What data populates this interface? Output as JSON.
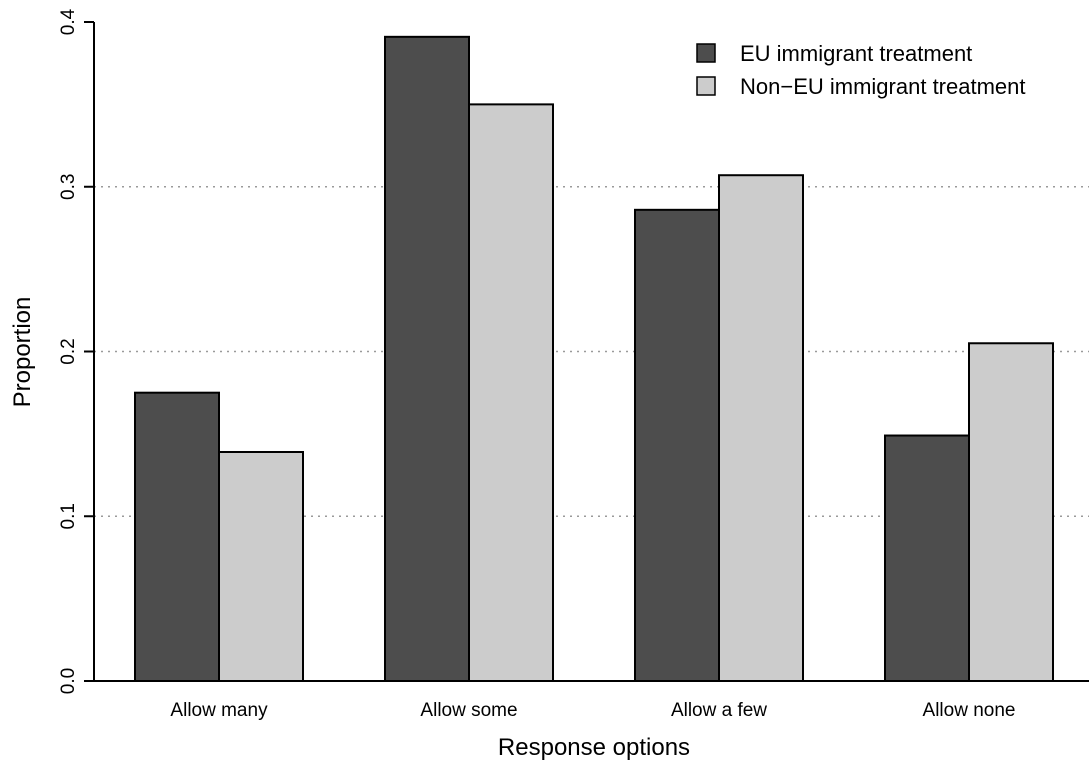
{
  "chart_data": {
    "type": "bar",
    "title": "",
    "xlabel": "Response options",
    "ylabel": "Proportion",
    "categories": [
      "Allow many",
      "Allow some",
      "Allow a few",
      "Allow none"
    ],
    "series": [
      {
        "name": "EU immigrant treatment",
        "values": [
          0.175,
          0.391,
          0.286,
          0.149
        ],
        "color": "#4d4d4d"
      },
      {
        "name": "Non−EU immigrant treatment",
        "values": [
          0.139,
          0.35,
          0.307,
          0.205
        ],
        "color": "#cccccc"
      }
    ],
    "ylim": [
      0,
      0.4
    ],
    "yticks": [
      0.0,
      0.1,
      0.2,
      0.3,
      0.4
    ],
    "ytick_labels": [
      "0.0",
      "0.1",
      "0.2",
      "0.3",
      "0.4"
    ],
    "grid": "horizontal dotted at 0.1, 0.2, 0.3",
    "legend_position": "top-right"
  }
}
